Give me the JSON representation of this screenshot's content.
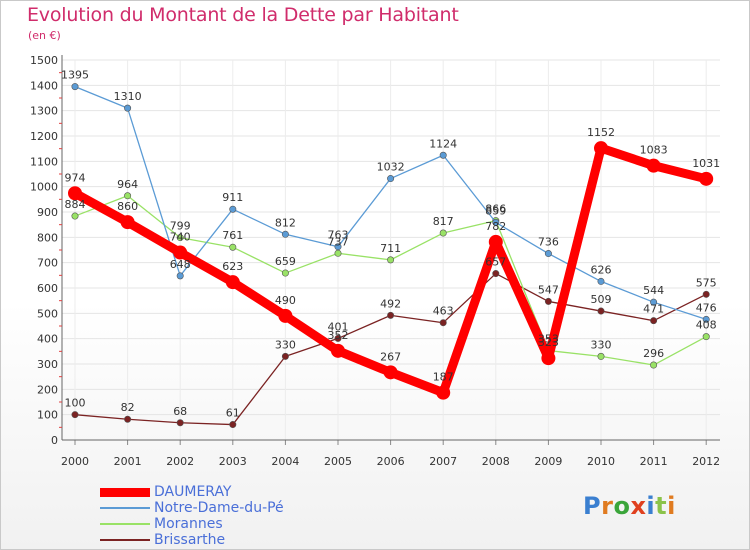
{
  "title": "Evolution du Montant de la Dette par Habitant",
  "unit_label": "(en €)",
  "logo": {
    "text": "ProXiti",
    "letters": [
      "P",
      "r",
      "o",
      "x",
      "i",
      "t",
      "i"
    ],
    "colors": [
      "#3a7fd0",
      "#e07b20",
      "#3aa53a",
      "#e0401f",
      "#3a7fd0",
      "#8bc34a",
      "#e07b20"
    ]
  },
  "chart_data": {
    "type": "line",
    "x": [
      "2000",
      "2001",
      "2002",
      "2003",
      "2004",
      "2005",
      "2006",
      "2007",
      "2008",
      "2009",
      "2010",
      "2011",
      "2012"
    ],
    "ylim": [
      0,
      1500
    ],
    "yticks": [
      0,
      100,
      200,
      300,
      400,
      500,
      600,
      700,
      800,
      900,
      1000,
      1100,
      1200,
      1300,
      1400,
      1500
    ],
    "grid": true,
    "legend_position": "bottom-left",
    "series": [
      {
        "name": "DAUMERAY",
        "color": "#ff0000",
        "values": [
          974,
          860,
          740,
          623,
          490,
          352,
          267,
          187,
          782,
          323,
          1152,
          1083,
          1031
        ]
      },
      {
        "name": "Notre-Dame-du-Pé",
        "color": "#5b9bd5",
        "values": [
          1395,
          1310,
          648,
          911,
          812,
          763,
          1032,
          1124,
          859,
          736,
          626,
          544,
          476
        ]
      },
      {
        "name": "Morannes",
        "color": "#99e266",
        "values": [
          884,
          964,
          799,
          761,
          659,
          737,
          711,
          817,
          866,
          353,
          330,
          296,
          408
        ]
      },
      {
        "name": "Brissarthe",
        "color": "#7b2323",
        "values": [
          100,
          82,
          68,
          61,
          330,
          401,
          492,
          463,
          657,
          547,
          509,
          471,
          575
        ]
      }
    ],
    "data_labels": [
      [
        "974",
        "860",
        "740",
        "623",
        "490",
        "352",
        "267",
        "187",
        "782",
        "323",
        "1152",
        "1083",
        "1031"
      ],
      [
        "1395",
        "1310",
        "648",
        "911",
        "812",
        "763",
        "1032",
        "1124",
        "859",
        "736",
        "626",
        "544",
        "476"
      ],
      [
        "884",
        "964",
        "799",
        "761",
        "659",
        "737",
        "711",
        "817",
        "866",
        "353",
        "330",
        "296",
        "408"
      ],
      [
        "100",
        "82",
        "68",
        "61",
        "330",
        "401",
        "492",
        "463",
        "657",
        "547",
        "509",
        "471",
        "575"
      ]
    ]
  }
}
